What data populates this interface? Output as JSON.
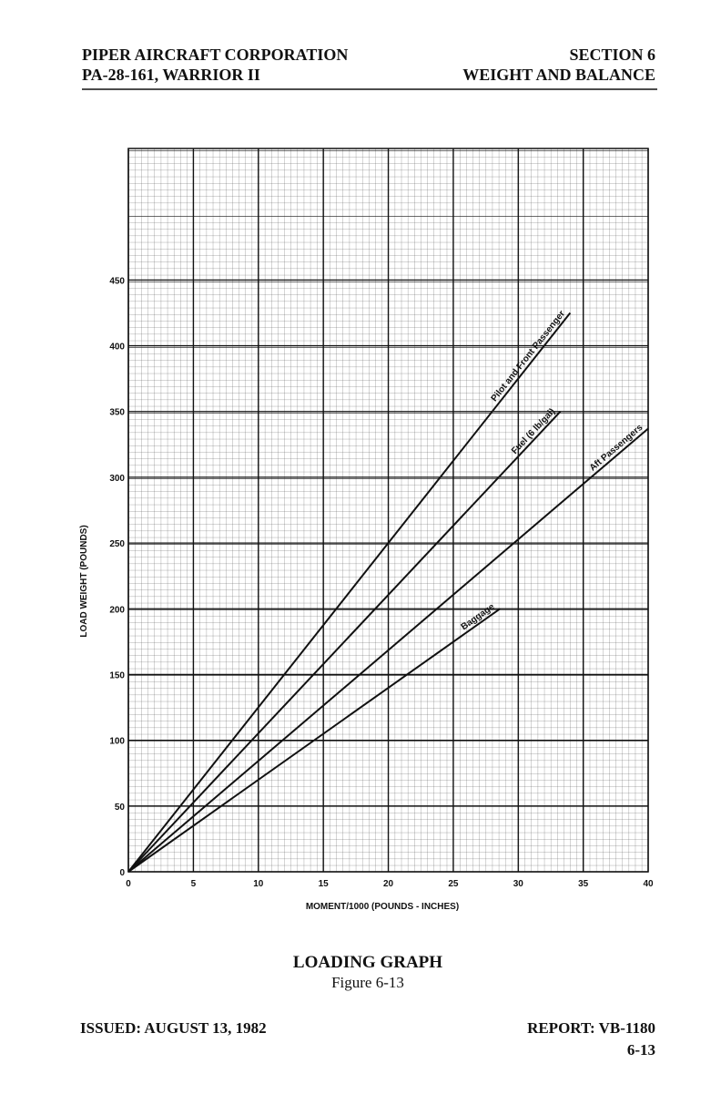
{
  "header": {
    "left": [
      "PIPER AIRCRAFT CORPORATION",
      "PA-28-161, WARRIOR II"
    ],
    "right": [
      "SECTION 6",
      "WEIGHT AND BALANCE"
    ]
  },
  "chart_data": {
    "type": "line",
    "x_label": "MOMENT/1000 (POUNDS - INCHES)",
    "y_label": "LOAD WEIGHT (POUNDS)",
    "xlim": [
      0,
      40
    ],
    "ylim": [
      0,
      550
    ],
    "xticks": [
      0,
      5,
      10,
      15,
      20,
      25,
      30,
      35,
      40
    ],
    "yticks": [
      0,
      50,
      100,
      150,
      200,
      250,
      300,
      350,
      400,
      450
    ],
    "grid": true,
    "series": [
      {
        "name": "Pilot and Front Passenger",
        "color": "#111111",
        "x": [
          0,
          34
        ],
        "values": [
          0,
          425
        ]
      },
      {
        "name": "Fuel (6 lb/gal)",
        "color": "#111111",
        "x": [
          0,
          33.25
        ],
        "values": [
          0,
          350
        ]
      },
      {
        "name": "Aft Passengers",
        "color": "#111111",
        "x": [
          0,
          40
        ],
        "values": [
          0,
          337
        ]
      },
      {
        "name": "Baggage",
        "color": "#111111",
        "x": [
          0,
          28.6
        ],
        "values": [
          0,
          200
        ]
      }
    ]
  },
  "caption": {
    "title": "LOADING GRAPH",
    "subtitle": "Figure 6-13"
  },
  "footer": {
    "issued": "ISSUED: AUGUST 13, 1982",
    "report": "REPORT: VB-1180",
    "page": "6-13"
  }
}
